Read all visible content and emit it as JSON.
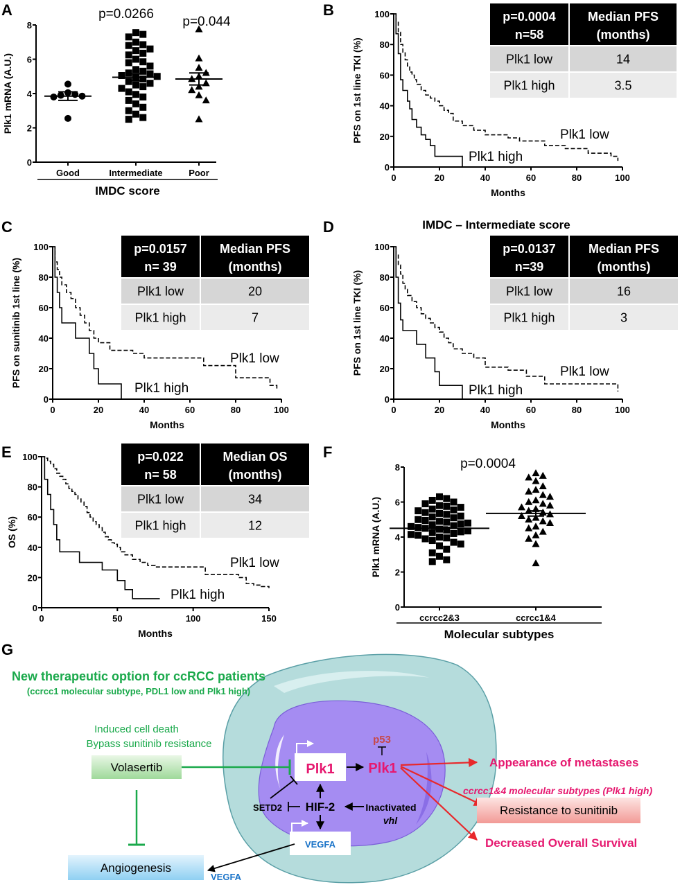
{
  "panel_letters": [
    "A",
    "B",
    "C",
    "D",
    "E",
    "F",
    "G"
  ],
  "chart_data": [
    {
      "id": "A",
      "type": "scatter",
      "categories": [
        "Good",
        "Intermediate",
        "Poor"
      ],
      "xlabel": "IMDC score",
      "ylabel": "Plk1 mRNA (A.U.)",
      "ylim": [
        0,
        8
      ],
      "yticks": [
        0,
        2,
        4,
        6,
        8
      ],
      "pvalues": [
        "p=0.0266",
        "p=0.044"
      ],
      "series": [
        {
          "name": "Good",
          "marker": "circle",
          "mean": 3.85,
          "sem": 0.25,
          "values": [
            4.55,
            4.05,
            3.95,
            3.9,
            3.85,
            3.8,
            2.55
          ]
        },
        {
          "name": "Intermediate",
          "marker": "square",
          "mean": 4.95,
          "sem": 0.2,
          "values": [
            7.55,
            7.45,
            7.3,
            7.0,
            6.85,
            6.8,
            6.6,
            6.5,
            6.35,
            6.25,
            6.0,
            5.85,
            5.8,
            5.6,
            5.4,
            5.3,
            5.2,
            5.15,
            5.05,
            5.0,
            4.95,
            4.85,
            4.7,
            4.6,
            4.5,
            4.4,
            4.3,
            4.1,
            3.95,
            3.8,
            3.6,
            3.4,
            3.2,
            3.0,
            2.8,
            2.6,
            2.5
          ]
        },
        {
          "name": "Poor",
          "marker": "triangle",
          "mean": 4.85,
          "sem": 0.35,
          "values": [
            7.75,
            6.05,
            5.5,
            5.2,
            5.0,
            4.85,
            4.6,
            4.4,
            4.2,
            3.9,
            3.6,
            2.5
          ]
        }
      ]
    },
    {
      "id": "B",
      "type": "line",
      "xlabel": "Months",
      "ylabel": "PFS  on 1st line TKI (%)",
      "xlim": [
        0,
        100
      ],
      "ylim": [
        0,
        100
      ],
      "xticks": [
        0,
        20,
        40,
        60,
        80,
        100
      ],
      "yticks": [
        0,
        20,
        40,
        60,
        80,
        100
      ],
      "series": [
        {
          "name": "Plk1 low",
          "dashed": true,
          "x": [
            0,
            1,
            2,
            3,
            4,
            5,
            6,
            7,
            8,
            9,
            10,
            12,
            14,
            16,
            18,
            20,
            22,
            24,
            26,
            30,
            35,
            40,
            45,
            50,
            55,
            60,
            66,
            70,
            75,
            80,
            85,
            90,
            95,
            98
          ],
          "y": [
            100,
            95,
            88,
            80,
            75,
            70,
            66,
            62,
            60,
            57,
            54,
            50,
            47,
            45,
            43,
            40,
            37,
            35,
            30,
            27,
            24,
            21,
            21,
            19,
            17,
            17,
            14,
            14,
            12,
            12,
            9,
            9,
            7,
            4
          ]
        },
        {
          "name": "Plk1 high",
          "dashed": false,
          "x": [
            0,
            1,
            2,
            3,
            4,
            5,
            6,
            7,
            8,
            10,
            12,
            14,
            16,
            18,
            20,
            25,
            30
          ],
          "y": [
            100,
            87,
            74,
            57,
            50,
            50,
            43,
            38,
            31,
            26,
            21,
            18,
            14,
            7,
            7,
            7,
            0
          ]
        }
      ],
      "table": {
        "header": [
          "p=0.0004",
          "n=58",
          "Median PFS",
          "(months)"
        ],
        "rows": [
          [
            "Plk1 low",
            "14"
          ],
          [
            "Plk1 high",
            "3.5"
          ]
        ]
      },
      "curve_labels": [
        "Plk1 low",
        "Plk1 high"
      ]
    },
    {
      "id": "C",
      "type": "line",
      "xlabel": "Months",
      "ylabel": "PFS on sunitinib 1st line (%)",
      "xlim": [
        0,
        100
      ],
      "ylim": [
        0,
        100
      ],
      "xticks": [
        0,
        20,
        40,
        60,
        80,
        100
      ],
      "yticks": [
        0,
        20,
        40,
        60,
        80,
        100
      ],
      "series": [
        {
          "name": "Plk1 low",
          "dashed": true,
          "x": [
            0,
            1,
            2,
            3,
            4,
            6,
            8,
            10,
            12,
            14,
            16,
            18,
            20,
            25,
            30,
            35,
            40,
            50,
            60,
            66,
            70,
            75,
            80,
            85,
            90,
            95,
            98
          ],
          "y": [
            100,
            90,
            85,
            80,
            75,
            70,
            66,
            60,
            55,
            50,
            45,
            40,
            37,
            32,
            32,
            30,
            27,
            27,
            27,
            22,
            22,
            22,
            14,
            14,
            14,
            9,
            7
          ]
        },
        {
          "name": "Plk1 high",
          "dashed": false,
          "x": [
            0,
            1,
            2,
            3,
            4,
            6,
            8,
            10,
            12,
            14,
            16,
            18,
            20,
            25,
            30
          ],
          "y": [
            100,
            80,
            70,
            60,
            50,
            50,
            50,
            40,
            40,
            40,
            30,
            20,
            10,
            10,
            0
          ]
        }
      ],
      "table": {
        "header": [
          "p=0.0157",
          "n= 39",
          "Median PFS",
          "(months)"
        ],
        "rows": [
          [
            "Plk1 low",
            "20"
          ],
          [
            "Plk1 high",
            "7"
          ]
        ]
      },
      "curve_labels": [
        "Plk1 low",
        "Plk1 high"
      ]
    },
    {
      "id": "D",
      "type": "line",
      "title": "IMDC – Intermediate score",
      "xlabel": "Months",
      "ylabel": "PFS on 1st line TKI (%)",
      "xlim": [
        0,
        100
      ],
      "ylim": [
        0,
        100
      ],
      "xticks": [
        0,
        20,
        40,
        60,
        80,
        100
      ],
      "yticks": [
        0,
        20,
        40,
        60,
        80,
        100
      ],
      "series": [
        {
          "name": "Plk1 low",
          "dashed": true,
          "x": [
            0,
            1,
            2,
            3,
            4,
            5,
            6,
            8,
            10,
            12,
            14,
            16,
            18,
            20,
            22,
            24,
            26,
            30,
            35,
            40,
            45,
            50,
            55,
            58,
            62,
            66,
            70,
            75,
            80,
            85,
            90,
            95,
            98
          ],
          "y": [
            100,
            95,
            88,
            82,
            76,
            72,
            68,
            64,
            60,
            56,
            53,
            50,
            47,
            44,
            40,
            37,
            33,
            30,
            27,
            21,
            21,
            19,
            19,
            15,
            15,
            10,
            10,
            10,
            10,
            10,
            10,
            10,
            5
          ]
        },
        {
          "name": "Plk1 high",
          "dashed": false,
          "x": [
            0,
            1,
            2,
            3,
            4,
            6,
            8,
            10,
            12,
            14,
            16,
            18,
            20,
            25,
            30
          ],
          "y": [
            100,
            80,
            63,
            52,
            45,
            45,
            45,
            36,
            36,
            27,
            27,
            18,
            9,
            9,
            0
          ]
        }
      ],
      "table": {
        "header": [
          "p=0.0137",
          "n=39",
          "Median PFS",
          "(months)"
        ],
        "rows": [
          [
            "Plk1 low",
            "16"
          ],
          [
            "Plk1 high",
            "3"
          ]
        ]
      },
      "curve_labels": [
        "Plk1 low",
        "Plk1 high"
      ]
    },
    {
      "id": "E",
      "type": "line",
      "xlabel": "Months",
      "ylabel": "OS (%)",
      "xlim": [
        0,
        150
      ],
      "ylim": [
        0,
        100
      ],
      "xticks": [
        0,
        50,
        100,
        150
      ],
      "yticks": [
        0,
        20,
        40,
        60,
        80,
        100
      ],
      "series": [
        {
          "name": "Plk1 low",
          "dashed": true,
          "x": [
            0,
            2,
            4,
            6,
            8,
            10,
            12,
            14,
            16,
            18,
            20,
            22,
            24,
            26,
            28,
            30,
            32,
            34,
            36,
            38,
            40,
            42,
            44,
            46,
            48,
            50,
            52,
            55,
            60,
            65,
            70,
            75,
            80,
            85,
            90,
            95,
            100,
            105,
            108,
            112,
            118,
            125,
            130,
            135,
            140,
            145,
            150
          ],
          "y": [
            100,
            99,
            97,
            95,
            92,
            89,
            87,
            85,
            82,
            79,
            77,
            75,
            72,
            70,
            67,
            63,
            60,
            57,
            55,
            53,
            50,
            47,
            45,
            43,
            42,
            40,
            37,
            35,
            32,
            30,
            28,
            27,
            27,
            27,
            27,
            27,
            27,
            27,
            22,
            22,
            22,
            22,
            20,
            16,
            15,
            14,
            13
          ]
        },
        {
          "name": "Plk1 high",
          "dashed": false,
          "x": [
            0,
            2,
            4,
            6,
            8,
            10,
            12,
            15,
            20,
            25,
            30,
            35,
            40,
            45,
            50,
            55,
            60,
            65,
            78
          ],
          "y": [
            100,
            85,
            75,
            65,
            55,
            45,
            37,
            37,
            37,
            30,
            30,
            30,
            25,
            25,
            18,
            12,
            6,
            6,
            6
          ]
        }
      ],
      "table": {
        "header": [
          "p=0.022",
          "n= 58",
          "Median OS",
          "(months)"
        ],
        "rows": [
          [
            "Plk1 low",
            "34"
          ],
          [
            "Plk1 high",
            "12"
          ]
        ]
      },
      "curve_labels": [
        "Plk1 low",
        "Plk1 high"
      ]
    },
    {
      "id": "F",
      "type": "scatter",
      "categories": [
        "ccrcc2&3",
        "ccrcc1&4"
      ],
      "xlabel": "Molecular subtypes",
      "ylabel": "Plk1 mRNA (A.U.)",
      "ylim": [
        0,
        8
      ],
      "yticks": [
        0,
        2,
        4,
        6,
        8
      ],
      "pvalues": [
        "p=0.0004"
      ],
      "series": [
        {
          "name": "ccrcc2&3",
          "marker": "square",
          "mean": 4.5,
          "sem": 0.08,
          "values": [
            6.3,
            6.2,
            6.1,
            6.0,
            5.9,
            5.8,
            5.75,
            5.7,
            5.6,
            5.55,
            5.5,
            5.4,
            5.35,
            5.3,
            5.2,
            5.15,
            5.1,
            5.0,
            4.95,
            4.9,
            4.85,
            4.8,
            4.75,
            4.7,
            4.65,
            4.6,
            4.55,
            4.5,
            4.45,
            4.4,
            4.35,
            4.3,
            4.25,
            4.2,
            4.15,
            4.1,
            4.0,
            3.95,
            3.9,
            3.8,
            3.7,
            3.6,
            3.5,
            3.3,
            3.1,
            2.9,
            2.7,
            2.6
          ]
        },
        {
          "name": "ccrcc1&4",
          "marker": "triangle",
          "mean": 5.35,
          "sem": 0.15,
          "values": [
            7.65,
            7.5,
            7.4,
            7.2,
            6.9,
            6.7,
            6.6,
            6.4,
            6.3,
            6.1,
            6.0,
            5.9,
            5.8,
            5.7,
            5.6,
            5.5,
            5.4,
            5.3,
            5.2,
            5.1,
            5.0,
            4.9,
            4.8,
            4.6,
            4.5,
            4.3,
            4.1,
            3.9,
            3.6,
            2.5
          ]
        }
      ]
    }
  ],
  "panel_g": {
    "title": "New therapeutic option for ccRCC patients",
    "subtitle": "(ccrcc1 molecular subtype, PDL1 low and Plk1 high)",
    "effect_line1": "Induced cell death",
    "effect_line2": "Bypass sunitinib resistance",
    "volasertib": "Volasertib",
    "angiogenesis": "Angiogenesis",
    "vegfa_outside": "VEGFA",
    "plk1_gene": "Plk1",
    "plk1_protein": "Plk1",
    "p53": "p53",
    "hif2": "HIF-2",
    "setd2": "SETD2",
    "inactivated": "Inactivated",
    "vhl": "vhl",
    "vegfa_gene": "VEGFA",
    "metastases": "Appearance of metastases",
    "subtype_note": "ccrcc1&4 molecular subtypes (Plk1 high)",
    "resistance": "Resistance to sunitinib",
    "survival": "Decreased Overall Survival",
    "colors": {
      "green": "#1aa94b",
      "red": "#e8282b",
      "magenta": "#e6186f",
      "blue": "#1a73c8",
      "cell": "#b5dcdc",
      "nucleus": "#a58cf2"
    }
  }
}
